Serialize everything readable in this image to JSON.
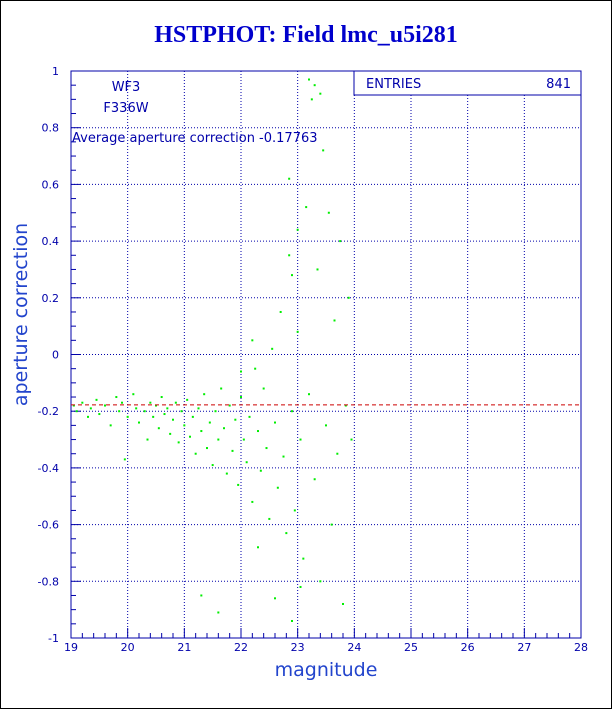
{
  "chart_data": {
    "type": "scatter",
    "title": "HSTPHOT: Field lmc_u5i281",
    "xlabel": "magnitude",
    "ylabel": "aperture correction",
    "xlim": [
      19,
      28
    ],
    "ylim": [
      -1,
      1
    ],
    "xticks": [
      "19",
      "20",
      "21",
      "22",
      "23",
      "24",
      "25",
      "26",
      "27",
      "28"
    ],
    "yticks": [
      "-1",
      "-0.8",
      "-0.6",
      "-0.4",
      "-0.2",
      "0",
      "0.2",
      "0.4",
      "0.6",
      "0.8",
      "1"
    ],
    "grid": true,
    "annotations": {
      "camera": "WF3",
      "filter": "F336W",
      "average_label": "Average aperture correction",
      "average_value": -0.17763
    },
    "stats": {
      "entries_label": "ENTRIES",
      "entries_value": "841"
    },
    "reference_line_y": -0.17763,
    "colors": {
      "points": "#00ee00",
      "axes": "#0000aa",
      "grid": "#0000aa",
      "reference_line": "#cc0000",
      "title": "#0000cc"
    },
    "series": [
      {
        "points": [
          [
            19.05,
            -0.18
          ],
          [
            19.1,
            -0.2
          ],
          [
            19.2,
            -0.17
          ],
          [
            19.3,
            -0.22
          ],
          [
            19.35,
            -0.19
          ],
          [
            19.45,
            -0.16
          ],
          [
            19.5,
            -0.21
          ],
          [
            19.6,
            -0.18
          ],
          [
            19.7,
            -0.25
          ],
          [
            19.8,
            -0.15
          ],
          [
            19.85,
            -0.2
          ],
          [
            19.9,
            -0.17
          ],
          [
            19.95,
            -0.37
          ],
          [
            20.0,
            -0.22
          ],
          [
            20.1,
            -0.14
          ],
          [
            20.15,
            -0.19
          ],
          [
            20.2,
            -0.24
          ],
          [
            20.3,
            -0.2
          ],
          [
            20.35,
            -0.3
          ],
          [
            20.4,
            -0.17
          ],
          [
            20.45,
            -0.22
          ],
          [
            20.5,
            -0.18
          ],
          [
            20.55,
            -0.26
          ],
          [
            20.6,
            -0.15
          ],
          [
            20.65,
            -0.21
          ],
          [
            20.7,
            -0.19
          ],
          [
            20.75,
            -0.28
          ],
          [
            20.8,
            -0.23
          ],
          [
            20.85,
            -0.17
          ],
          [
            20.9,
            -0.31
          ],
          [
            20.95,
            -0.2
          ],
          [
            21.0,
            -0.25
          ],
          [
            21.05,
            -0.16
          ],
          [
            21.1,
            -0.29
          ],
          [
            21.15,
            -0.22
          ],
          [
            21.2,
            -0.35
          ],
          [
            21.25,
            -0.19
          ],
          [
            21.3,
            -0.27
          ],
          [
            21.35,
            -0.14
          ],
          [
            21.4,
            -0.33
          ],
          [
            21.45,
            -0.24
          ],
          [
            21.5,
            -0.39
          ],
          [
            21.55,
            -0.2
          ],
          [
            21.6,
            -0.3
          ],
          [
            21.65,
            -0.12
          ],
          [
            21.7,
            -0.26
          ],
          [
            21.75,
            -0.42
          ],
          [
            21.8,
            -0.18
          ],
          [
            21.85,
            -0.34
          ],
          [
            21.9,
            -0.23
          ],
          [
            21.95,
            -0.46
          ],
          [
            22.0,
            -0.15
          ],
          [
            22.05,
            -0.3
          ],
          [
            22.1,
            -0.38
          ],
          [
            22.15,
            -0.22
          ],
          [
            22.2,
            -0.52
          ],
          [
            22.25,
            -0.05
          ],
          [
            22.3,
            -0.27
          ],
          [
            22.35,
            -0.41
          ],
          [
            22.4,
            -0.12
          ],
          [
            22.45,
            -0.33
          ],
          [
            22.5,
            -0.58
          ],
          [
            22.55,
            0.02
          ],
          [
            22.6,
            -0.24
          ],
          [
            22.65,
            -0.47
          ],
          [
            22.7,
            0.15
          ],
          [
            22.75,
            -0.36
          ],
          [
            22.8,
            -0.63
          ],
          [
            22.85,
            0.35
          ],
          [
            22.9,
            -0.2
          ],
          [
            22.95,
            -0.55
          ],
          [
            23.0,
            0.08
          ],
          [
            23.05,
            -0.3
          ],
          [
            23.1,
            -0.72
          ],
          [
            23.15,
            0.52
          ],
          [
            23.2,
            -0.14
          ],
          [
            23.25,
            0.9
          ],
          [
            23.3,
            -0.44
          ],
          [
            23.35,
            0.3
          ],
          [
            23.4,
            -0.8
          ],
          [
            23.45,
            0.72
          ],
          [
            23.5,
            -0.25
          ],
          [
            23.55,
            0.5
          ],
          [
            23.6,
            -0.6
          ],
          [
            23.65,
            0.12
          ],
          [
            23.7,
            -0.35
          ],
          [
            23.75,
            0.4
          ],
          [
            23.8,
            -0.88
          ],
          [
            23.85,
            -0.18
          ],
          [
            23.9,
            0.2
          ],
          [
            23.95,
            -0.3
          ],
          [
            22.85,
            0.62
          ],
          [
            22.9,
            0.28
          ],
          [
            23.0,
            0.44
          ],
          [
            23.2,
            0.97
          ],
          [
            23.3,
            0.95
          ],
          [
            23.4,
            0.92
          ],
          [
            22.6,
            -0.86
          ],
          [
            21.3,
            -0.85
          ],
          [
            21.6,
            -0.91
          ],
          [
            22.9,
            -0.94
          ],
          [
            23.05,
            -0.82
          ],
          [
            22.3,
            -0.68
          ],
          [
            22.0,
            -0.06
          ],
          [
            22.2,
            0.05
          ]
        ]
      }
    ]
  }
}
